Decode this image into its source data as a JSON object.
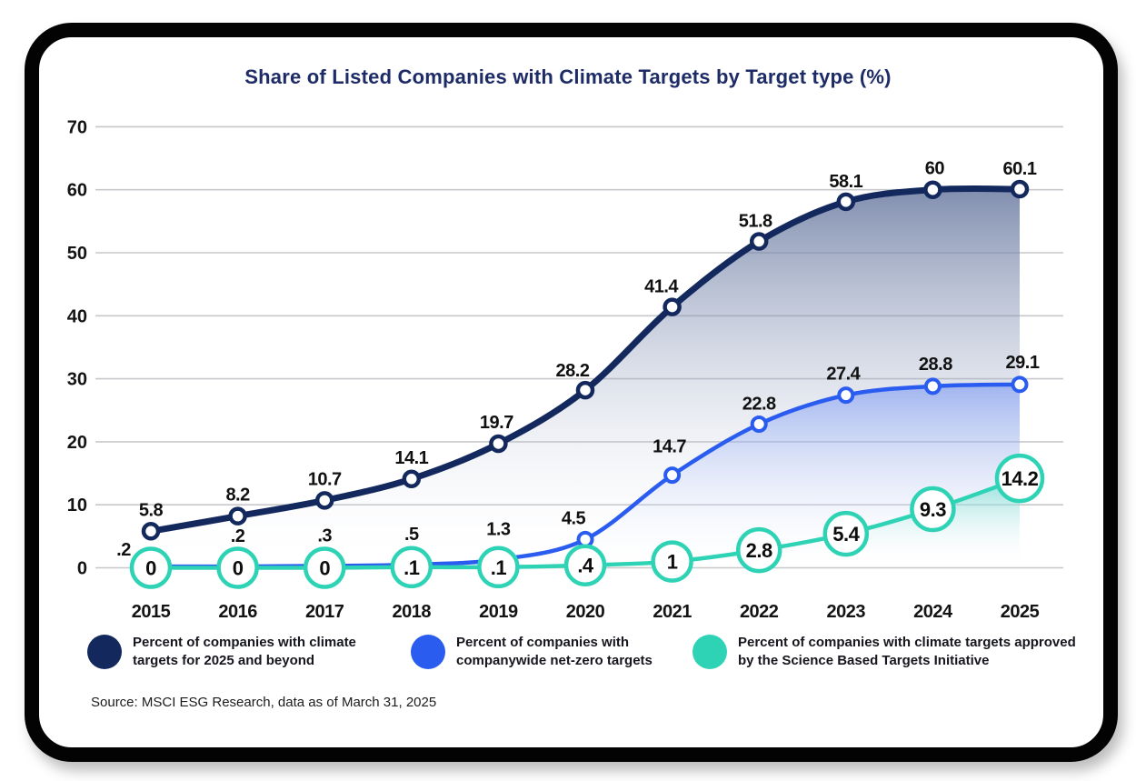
{
  "source": "Source: MSCI ESG Research, data as of March 31, 2025",
  "chart_data": {
    "type": "line",
    "title": "Share of Listed Companies with Climate Targets by Target type (%)",
    "categories": [
      "2015",
      "2016",
      "2017",
      "2018",
      "2019",
      "2020",
      "2021",
      "2022",
      "2023",
      "2024",
      "2025"
    ],
    "series": [
      {
        "name": "Percent of companies with climate targets for 2025 and beyond",
        "color": "#13295e",
        "values": [
          5.8,
          8.2,
          10.7,
          14.1,
          19.7,
          28.2,
          41.4,
          51.8,
          58.1,
          60,
          60.1
        ],
        "labels": [
          "5.8",
          "8.2",
          "10.7",
          "14.1",
          "19.7",
          "28.2",
          "41.4",
          "51.8",
          "58.1",
          "60",
          "60.1"
        ],
        "point_style": "small",
        "area_fill": "slate-gradient"
      },
      {
        "name": "Percent of companies with companywide net-zero targets",
        "color": "#2a5cf0",
        "values": [
          0.2,
          0.2,
          0.3,
          0.5,
          1.3,
          4.5,
          14.7,
          22.8,
          27.4,
          28.8,
          29.1
        ],
        "labels": [
          ".2",
          ".2",
          ".3",
          ".5",
          "1.3",
          "4.5",
          "14.7",
          "22.8",
          "27.4",
          "28.8",
          "29.1"
        ],
        "point_style": "small",
        "area_fill": "blue-gradient"
      },
      {
        "name": "Percent of companies with climate targets approved by the Science Based Targets Initiative",
        "color": "#2ed3b5",
        "values": [
          0,
          0,
          0,
          0.1,
          0.1,
          0.4,
          1,
          2.8,
          5.4,
          9.3,
          14.2
        ],
        "labels": [
          "0",
          "0",
          "0",
          ".1",
          ".1",
          ".4",
          "1",
          "2.8",
          "5.4",
          "9.3",
          "14.2"
        ],
        "point_style": "bubble",
        "area_fill": "teal-gradient"
      }
    ],
    "ylim": [
      0,
      70
    ],
    "yticks": [
      0,
      10,
      20,
      30,
      40,
      50,
      60,
      70
    ],
    "grid": true,
    "legend_position": "bottom"
  }
}
